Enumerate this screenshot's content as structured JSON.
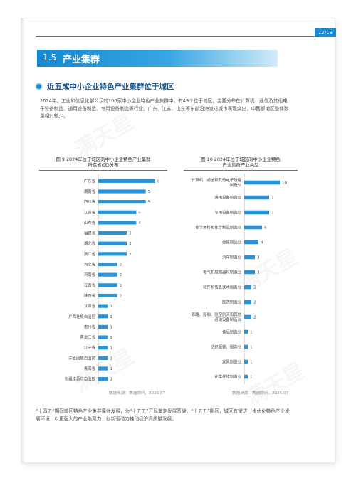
{
  "page_number": "12/13",
  "section": {
    "number": "1.5",
    "title": "产业集群"
  },
  "subsection": {
    "title": "近五成中小企业特色产业集群位于城区"
  },
  "paragraph": "2024年，工业和信息化部公示的100家中小企业特色产业集群中，有49个位于城区，主要分布在计算机、通信及其他电子设备制造、通用设备制造、专用设备制造等行业。广东、江苏、山东等东部沿海发达城市表现突出，中西部地区整体数量相对较少。",
  "watermark": "满天星",
  "colors": {
    "accent": "#1a8ad0",
    "bar": "#2b93d6"
  },
  "chart_data": [
    {
      "type": "bar",
      "orientation": "horizontal",
      "title": "图 9  2024年位于城区的中小企业特色产业集群所在省(区)分布",
      "title_lines": [
        "图 9  2024年位于城区的中小企业特色产业集群",
        "所在省(区)分布"
      ],
      "categories": [
        "广东省",
        "湖南省",
        "四川省",
        "江苏省",
        "山东省",
        "福建省",
        "湖北省",
        "浙江省",
        "河北省",
        "河南省",
        "江西省",
        "陕西省",
        "甘肃省",
        "广西壮族自治区",
        "贵州省",
        "黑龙江省",
        "辽宁省",
        "宁夏回族自治区",
        "青海省",
        "新疆维吾尔自治区"
      ],
      "values": [
        6,
        5,
        5,
        4,
        4,
        3,
        3,
        3,
        2,
        2,
        2,
        2,
        1,
        1,
        1,
        1,
        1,
        1,
        1,
        1
      ],
      "source": "数据来源：赛迪顾问，2025.07"
    },
    {
      "type": "bar",
      "orientation": "horizontal",
      "title": "图 10  2024年位于城区的中小企业特色产业集群产业类型",
      "title_lines": [
        "图 10  2024年位于城区的中小企业特色",
        "产业集群产业类型"
      ],
      "categories": [
        [
          "计算机、通信和其他电子设备",
          "制造业"
        ],
        [
          "通用设备制造业"
        ],
        [
          "专用设备制造业"
        ],
        [
          "化学原料和化学制品制造业"
        ],
        [
          "金属制品业"
        ],
        [
          "汽车制造业"
        ],
        [
          "电气机械和器材制造业"
        ],
        [
          "软件和信息技术服务业"
        ],
        [
          "医药制造业"
        ],
        [
          "铁路、船舶、航空航天和其他",
          "运输设备制造业"
        ],
        [
          "食品制造业"
        ],
        [
          "纺织服装、服饰业"
        ],
        [
          "家具制造业"
        ],
        [
          "化学纤维制造业"
        ]
      ],
      "values": [
        10,
        7,
        7,
        5,
        4,
        3,
        3,
        2,
        2,
        2,
        1,
        1,
        1,
        1
      ],
      "source": "数据来源：赛迪顾问，2025.07"
    }
  ],
  "footer_text": "“十四五”期间城区特色产业集群蓬勃发展，为“十五五”开局奠定发展基础。“十五五”期间，城区有望进一步优化特色产业发展环境，以更强大的产业集聚力、创新驱动力推动经济高质量发展。"
}
